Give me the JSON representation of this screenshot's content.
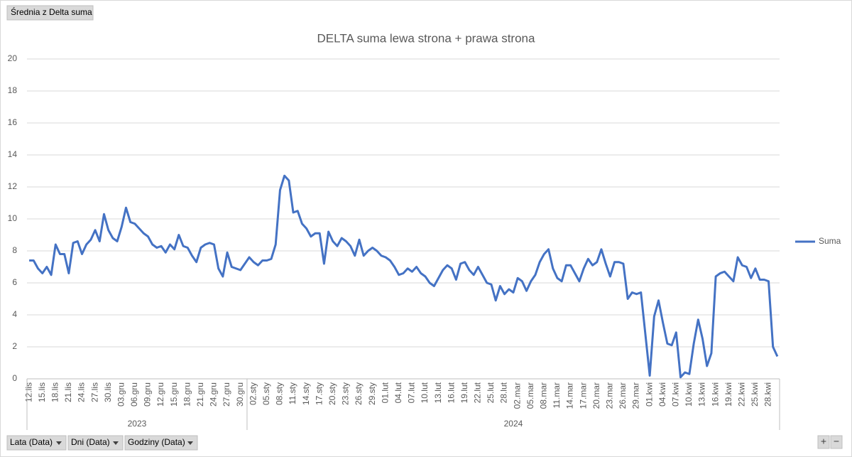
{
  "pivot_buttons": {
    "value_field": "Średnia z Delta suma",
    "axis_fields": [
      "Lata (Data)",
      "Dni (Data)",
      "Godziny (Data)"
    ],
    "zoom": [
      "+",
      "−"
    ]
  },
  "chart_data": {
    "type": "line",
    "title": "DELTA suma lewa strona + prawa strona",
    "categories": [
      "12.lis",
      null,
      null,
      "15.lis",
      null,
      null,
      "18.lis",
      null,
      null,
      "21.lis",
      null,
      null,
      "24.lis",
      null,
      null,
      "27.lis",
      null,
      null,
      "30.lis",
      null,
      null,
      "03.gru",
      null,
      null,
      "06.gru",
      null,
      null,
      "09.gru",
      null,
      null,
      "12.gru",
      null,
      null,
      "15.gru",
      null,
      null,
      "18.gru",
      null,
      null,
      "21.gru",
      null,
      null,
      "24.gru",
      null,
      null,
      "27.gru",
      null,
      null,
      "30.gru",
      null,
      null,
      "02.sty",
      null,
      null,
      "05.sty",
      null,
      null,
      "08.sty",
      null,
      null,
      "11.sty",
      null,
      null,
      "14.sty",
      null,
      null,
      "17.sty",
      null,
      null,
      "20.sty",
      null,
      null,
      "23.sty",
      null,
      null,
      "26.sty",
      null,
      null,
      "29.sty",
      null,
      null,
      "01.lut",
      null,
      null,
      "04.lut",
      null,
      null,
      "07.lut",
      null,
      null,
      "10.lut",
      null,
      null,
      "13.lut",
      null,
      null,
      "16.lut",
      null,
      null,
      "19.lut",
      null,
      null,
      "22.lut",
      null,
      null,
      "25.lut",
      null,
      null,
      "28.lut",
      null,
      null,
      "02.mar",
      null,
      null,
      "05.mar",
      null,
      null,
      "08.mar",
      null,
      null,
      "11.mar",
      null,
      null,
      "14.mar",
      null,
      null,
      "17.mar",
      null,
      null,
      "20.mar",
      null,
      null,
      "23.mar",
      null,
      null,
      "26.mar",
      null,
      null,
      "29.mar",
      null,
      null,
      "01.kwi",
      null,
      null,
      "04.kwi",
      null,
      null,
      "07.kwi",
      null,
      null,
      "10.kwi",
      null,
      null,
      "13.kwi",
      null,
      null,
      "16.kwi",
      null,
      null,
      "19.kwi",
      null,
      null,
      "22.kwi",
      null,
      null,
      "25.kwi",
      null,
      null,
      "28.kwi",
      null,
      null
    ],
    "year_groups": [
      {
        "label": "2023",
        "count": 50
      },
      {
        "label": "2024",
        "count": 121
      }
    ],
    "series": [
      {
        "name": "Suma",
        "color": "#4472c4",
        "values": [
          7.4,
          7.4,
          6.9,
          6.6,
          7.0,
          6.5,
          8.4,
          7.8,
          7.8,
          6.6,
          8.5,
          8.6,
          7.8,
          8.4,
          8.7,
          9.3,
          8.6,
          10.3,
          9.3,
          8.8,
          8.6,
          9.5,
          10.7,
          9.8,
          9.7,
          9.4,
          9.1,
          8.9,
          8.4,
          8.2,
          8.3,
          7.9,
          8.4,
          8.1,
          9.0,
          8.3,
          8.2,
          7.7,
          7.3,
          8.2,
          8.4,
          8.5,
          8.4,
          6.9,
          6.4,
          7.9,
          7.0,
          6.9,
          6.8,
          7.2,
          7.6,
          7.3,
          7.1,
          7.4,
          7.4,
          7.5,
          8.4,
          11.8,
          12.7,
          12.4,
          10.4,
          10.5,
          9.7,
          9.4,
          8.9,
          9.1,
          9.1,
          7.2,
          9.2,
          8.6,
          8.3,
          8.8,
          8.6,
          8.3,
          7.7,
          8.7,
          7.7,
          8.0,
          8.2,
          8.0,
          7.7,
          7.6,
          7.4,
          7.0,
          6.5,
          6.6,
          6.9,
          6.7,
          7.0,
          6.6,
          6.4,
          6.0,
          5.8,
          6.3,
          6.8,
          7.1,
          6.9,
          6.2,
          7.2,
          7.3,
          6.8,
          6.5,
          7.0,
          6.5,
          6.0,
          5.9,
          4.9,
          5.8,
          5.3,
          5.6,
          5.4,
          6.3,
          6.1,
          5.5,
          6.1,
          6.5,
          7.3,
          7.8,
          8.1,
          6.9,
          6.3,
          6.1,
          7.1,
          7.1,
          6.6,
          6.1,
          6.9,
          7.5,
          7.1,
          7.3,
          8.1,
          7.2,
          6.4,
          7.3,
          7.3,
          7.2,
          5.0,
          5.4,
          5.3,
          5.4,
          2.8,
          0.2,
          3.9,
          4.9,
          3.5,
          2.2,
          2.1,
          2.9,
          0.1,
          0.4,
          0.3,
          2.2,
          3.7,
          2.5,
          0.8,
          1.6,
          6.4,
          6.6,
          6.7,
          6.4,
          6.1,
          7.6,
          7.1,
          7.0,
          6.3,
          6.9,
          6.2,
          6.2,
          6.1,
          2.0,
          1.4
        ]
      }
    ],
    "ylim": [
      0,
      20
    ],
    "yticks": [
      0,
      2,
      4,
      6,
      8,
      10,
      12,
      14,
      16,
      18,
      20
    ],
    "grid": true,
    "legend": "right"
  }
}
